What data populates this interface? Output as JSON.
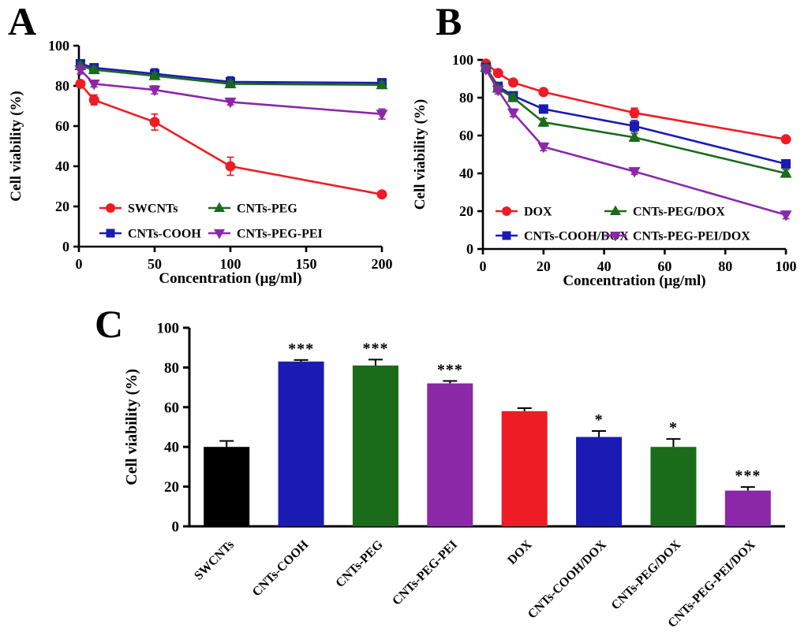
{
  "figure": {
    "background": "#ffffff",
    "panels": [
      {
        "label": "A"
      },
      {
        "label": "B"
      },
      {
        "label": "C"
      }
    ]
  },
  "colors": {
    "red": "#ee1c25",
    "blue": "#1b1bb3",
    "green": "#1a6b1a",
    "purple": "#8a28a8",
    "black": "#000000",
    "axis": "#000000"
  },
  "chart_data": [
    {
      "panel": "A",
      "type": "line",
      "xlabel": "Concentration (μg/ml)",
      "ylabel": "Cell viability (%)",
      "xlim": [
        0,
        200
      ],
      "ylim": [
        0,
        100
      ],
      "xticks": [
        0,
        50,
        100,
        150,
        200
      ],
      "yticks": [
        0,
        20,
        40,
        60,
        80,
        100
      ],
      "grid": false,
      "legend_position": "inside-bottom-left",
      "x": [
        1,
        10,
        50,
        100,
        200
      ],
      "series": [
        {
          "name": "SWCNTs",
          "color": "#ee1c25",
          "marker": "circle",
          "values": [
            81,
            73,
            62,
            40,
            26
          ],
          "errors": [
            1.5,
            2.5,
            4,
            4.5,
            1.5
          ]
        },
        {
          "name": "CNTs-COOH",
          "color": "#1b1bb3",
          "marker": "square",
          "values": [
            91,
            89,
            86,
            82,
            81.5
          ],
          "errors": [
            2,
            1.5,
            2.5,
            2.5,
            2
          ]
        },
        {
          "name": "CNTs-PEG",
          "color": "#1a6b1a",
          "marker": "triangle-up",
          "values": [
            90,
            88,
            85,
            81,
            80.5
          ],
          "errors": [
            1.5,
            1.5,
            1.5,
            1.5,
            1.5
          ]
        },
        {
          "name": "CNTs-PEG-PEI",
          "color": "#8a28a8",
          "marker": "triangle-down",
          "values": [
            88,
            81,
            78,
            72,
            66
          ],
          "errors": [
            2,
            1.5,
            2,
            1.5,
            2.5
          ]
        }
      ]
    },
    {
      "panel": "B",
      "type": "line",
      "xlabel": "Concentration (μg/ml)",
      "ylabel": "Cell viability (%)",
      "xlim": [
        0,
        100
      ],
      "ylim": [
        0,
        100
      ],
      "xticks": [
        0,
        20,
        40,
        60,
        80,
        100
      ],
      "yticks": [
        0,
        20,
        40,
        60,
        80,
        100
      ],
      "grid": false,
      "legend_position": "inside-bottom-left",
      "x": [
        1,
        5,
        10,
        20,
        50,
        100
      ],
      "series": [
        {
          "name": "DOX",
          "color": "#ee1c25",
          "marker": "circle",
          "values": [
            98,
            93,
            88,
            83,
            72,
            58
          ],
          "errors": [
            1,
            1,
            1.5,
            1.5,
            2.5,
            1.5
          ]
        },
        {
          "name": "CNTs-COOH/DOX",
          "color": "#1b1bb3",
          "marker": "square",
          "values": [
            96,
            86,
            81,
            74,
            65,
            45
          ],
          "errors": [
            1.5,
            1.5,
            2,
            2,
            3,
            2
          ]
        },
        {
          "name": "CNTs-PEG/DOX",
          "color": "#1a6b1a",
          "marker": "triangle-up",
          "values": [
            96,
            85,
            80,
            67,
            59,
            40
          ],
          "errors": [
            1.5,
            1.5,
            2,
            2,
            2,
            2
          ]
        },
        {
          "name": "CNTs-PEG-PEI/DOX",
          "color": "#8a28a8",
          "marker": "triangle-down",
          "values": [
            95,
            84,
            72,
            54,
            41,
            18
          ],
          "errors": [
            1.5,
            2,
            2,
            2,
            1.5,
            2
          ]
        }
      ]
    },
    {
      "panel": "C",
      "type": "bar",
      "ylabel": "Cell viability (%)",
      "ylim": [
        0,
        100
      ],
      "yticks": [
        0,
        20,
        40,
        60,
        80,
        100
      ],
      "grid": false,
      "categories": [
        "SWCNTs",
        "CNTs-COOH",
        "CNTs-PEG",
        "CNTs-PEG-PEI",
        "DOX",
        "CNTs-COOH/DOX",
        "CNTs-PEG/DOX",
        "CNTs-PEG-PEI/DOX"
      ],
      "values": [
        40,
        83,
        81,
        72,
        58,
        45,
        40,
        18
      ],
      "errors": [
        3,
        0.8,
        3,
        1.2,
        1.5,
        3,
        4,
        1.8
      ],
      "bar_colors": [
        "#000000",
        "#1b1bb3",
        "#1a6b1a",
        "#8a28a8",
        "#ee1c25",
        "#1b1bb3",
        "#1a6b1a",
        "#8a28a8"
      ],
      "significance": [
        "",
        "***",
        "***",
        "***",
        "",
        "*",
        "*",
        "***"
      ]
    }
  ]
}
